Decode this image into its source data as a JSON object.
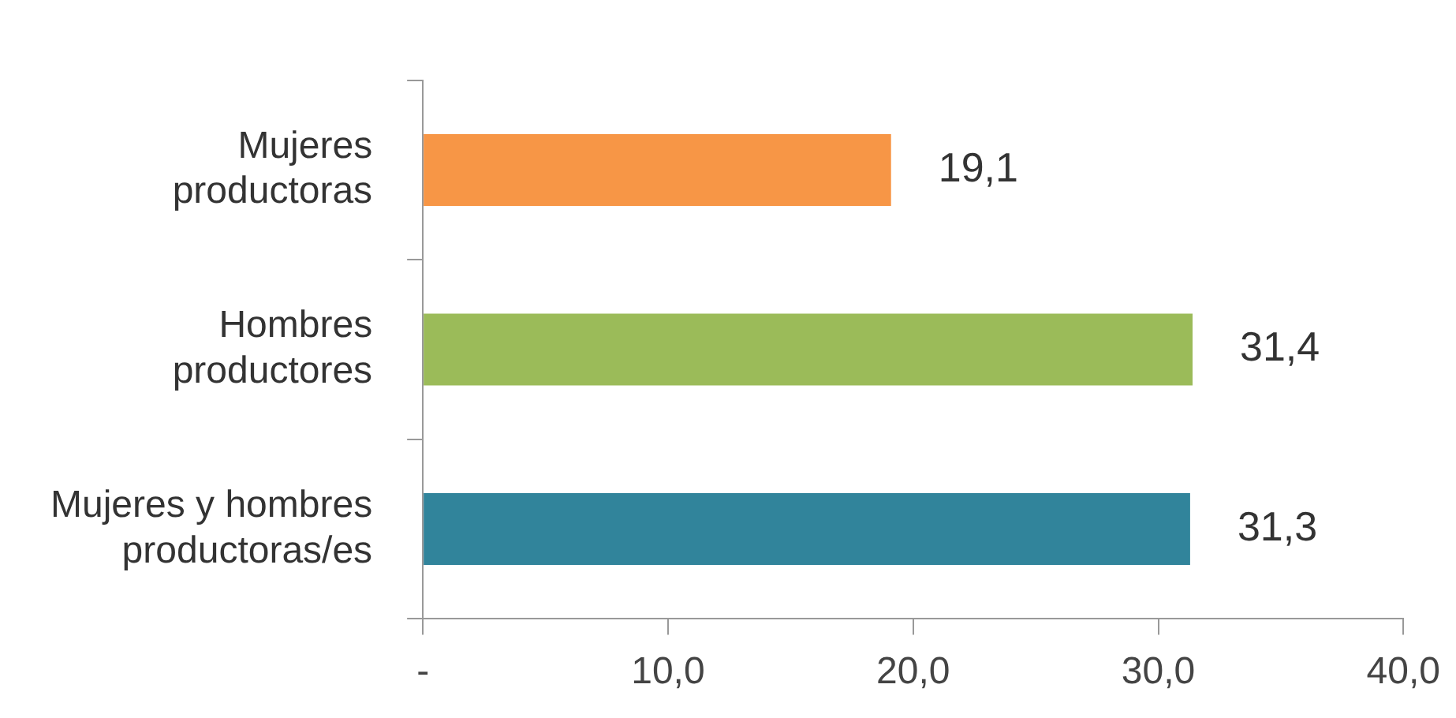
{
  "chart_data": {
    "type": "bar",
    "orientation": "horizontal",
    "categories": [
      "Mujeres productoras",
      "Hombres productores",
      "Mujeres y hombres productoras/es"
    ],
    "values": [
      19.1,
      31.4,
      31.3
    ],
    "colors": [
      "#f79646",
      "#9bbb59",
      "#31849b"
    ],
    "value_labels": [
      "19,1",
      "31,4",
      "31,3"
    ],
    "xlim": [
      0,
      40
    ],
    "xticks": [
      {
        "value": 0,
        "label": "-"
      },
      {
        "value": 10,
        "label": "10,0"
      },
      {
        "value": 20,
        "label": "20,0"
      },
      {
        "value": 30,
        "label": "30,0"
      },
      {
        "value": 40,
        "label": "40,0"
      }
    ],
    "grid": false,
    "legend": false
  }
}
